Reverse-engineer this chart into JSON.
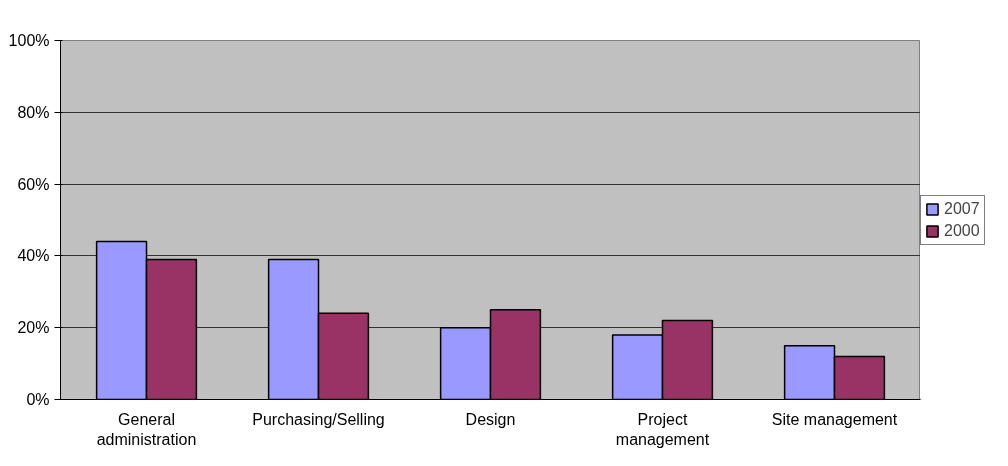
{
  "chart_data": {
    "type": "bar",
    "categories": [
      "General\nadministration",
      "Purchasing/Selling",
      "Design",
      "Project\nmanagement",
      "Site management"
    ],
    "series": [
      {
        "name": "2007",
        "color": "#9999ff",
        "values": [
          44,
          39,
          20,
          18,
          15
        ]
      },
      {
        "name": "2000",
        "color": "#993366",
        "values": [
          39,
          24,
          25,
          22,
          12
        ]
      }
    ],
    "ylim": [
      0,
      100
    ],
    "yticks": [
      {
        "value": 0,
        "label": "0%"
      },
      {
        "value": 20,
        "label": "20%"
      },
      {
        "value": 40,
        "label": "40%"
      },
      {
        "value": 60,
        "label": "60%"
      },
      {
        "value": 80,
        "label": "80%"
      },
      {
        "value": 100,
        "label": "100%"
      }
    ],
    "grid": "y",
    "legend": "right"
  }
}
